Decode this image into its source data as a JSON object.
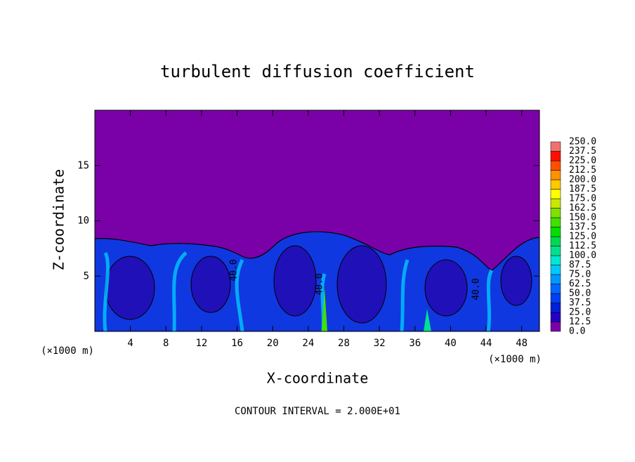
{
  "chart_data": {
    "type": "contour",
    "title": "turbulent diffusion coefficient",
    "xlabel": "X-coordinate",
    "ylabel": "Z-coordinate",
    "x_unit_left": "(×1000 m)",
    "x_unit_right": "(×1000 m)",
    "footer": "CONTOUR INTERVAL = 2.000E+01",
    "xlim": [
      0,
      50
    ],
    "ylim": [
      0,
      20
    ],
    "xticks": [
      4,
      8,
      12,
      16,
      20,
      24,
      28,
      32,
      36,
      40,
      44,
      48
    ],
    "yticks": [
      5,
      10,
      15
    ],
    "contour_labels": [
      "40.0",
      "40.0",
      "40.0"
    ],
    "colorbar": {
      "ticks": [
        {
          "value": 0,
          "label": "0.0"
        },
        12.5,
        {
          "value": 25,
          "label": "25.0"
        },
        37.5,
        {
          "value": 50,
          "label": "50.0"
        },
        62.5,
        {
          "value": 75,
          "label": "75.0"
        },
        87.5,
        {
          "value": 100,
          "label": "100.0"
        },
        112.5,
        {
          "value": 125,
          "label": "125.0"
        },
        137.5,
        {
          "value": 150,
          "label": "150.0"
        },
        162.5,
        {
          "value": 175,
          "label": "175.0"
        },
        187.5,
        {
          "value": 200,
          "label": "200.0"
        },
        212.5,
        {
          "value": 225,
          "label": "225.0"
        },
        237.5,
        {
          "value": 250,
          "label": "250.0"
        }
      ],
      "colors": [
        "#7a00a8",
        "#2400c0",
        "#0020d8",
        "#0040f0",
        "#0068ff",
        "#0098ff",
        "#00c8ff",
        "#00e8d0",
        "#00e090",
        "#00d850",
        "#00e000",
        "#40e000",
        "#80e000",
        "#c8e800",
        "#ffff00",
        "#ffc800",
        "#ff9000",
        "#ff5000",
        "#ff1000",
        "#f07070"
      ]
    }
  }
}
